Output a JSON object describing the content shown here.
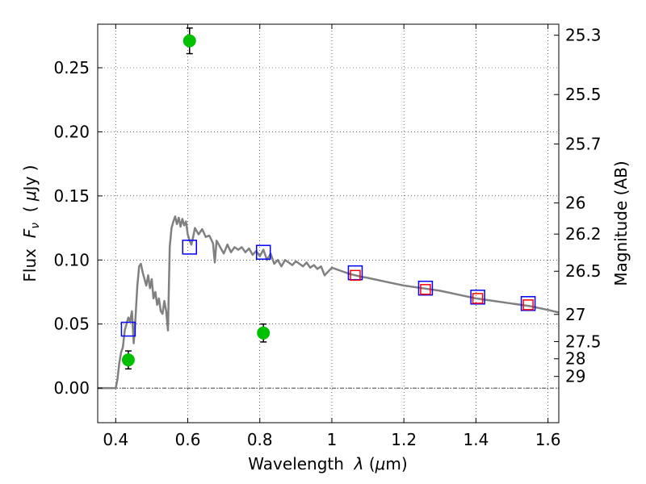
{
  "chart_data": {
    "type": "scatter",
    "xlabel_pre": "Wavelength  ",
    "xlabel_lambda": "λ",
    "xlabel_post": " (",
    "xlabel_mu": "μ",
    "xlabel_unit": "m)",
    "ylabel_pre": "Flux  ",
    "ylabel_F": "F",
    "ylabel_nu": "ν",
    "ylabel_post": "  ( ",
    "ylabel_mu": "μ",
    "ylabel_unit": "Jy )",
    "y2label": "Magnitude (AB)",
    "xlim": [
      0.35,
      1.63
    ],
    "ylim": [
      -0.027,
      0.284
    ],
    "grid": true,
    "xticks": [
      0.4,
      0.6,
      0.8,
      1.0,
      1.2,
      1.4,
      1.6
    ],
    "xtick_labels": [
      "0.4",
      "0.6",
      "0.8",
      "1",
      "1.2",
      "1.4",
      "1.6"
    ],
    "yticks": [
      0.0,
      0.05,
      0.1,
      0.15,
      0.2,
      0.25
    ],
    "ytick_labels": [
      "0.00",
      "0.05",
      "0.10",
      "0.15",
      "0.20",
      "0.25"
    ],
    "mag_ticks": [
      {
        "label": "25.3",
        "flux": 0.2754
      },
      {
        "label": "25.5",
        "flux": 0.2291
      },
      {
        "label": "25.7",
        "flux": 0.1905
      },
      {
        "label": "26",
        "flux": 0.1445
      },
      {
        "label": "26.2",
        "flux": 0.1202
      },
      {
        "label": "26.5",
        "flux": 0.0912
      },
      {
        "label": "27",
        "flux": 0.0575
      },
      {
        "label": "27.5",
        "flux": 0.0363
      },
      {
        "label": "28",
        "flux": 0.0229
      },
      {
        "label": "29",
        "flux": 0.0091
      }
    ],
    "series": [
      {
        "kind": "line",
        "color": "#808080",
        "x": [
          0.35,
          0.4,
          0.405,
          0.41,
          0.415,
          0.42,
          0.425,
          0.43,
          0.435,
          0.44,
          0.445,
          0.45,
          0.455,
          0.46,
          0.465,
          0.47,
          0.475,
          0.48,
          0.485,
          0.49,
          0.495,
          0.5,
          0.505,
          0.51,
          0.515,
          0.52,
          0.525,
          0.53,
          0.535,
          0.54,
          0.545,
          0.55,
          0.555,
          0.56,
          0.565,
          0.57,
          0.575,
          0.58,
          0.585,
          0.59,
          0.595,
          0.6,
          0.605,
          0.61,
          0.615,
          0.62,
          0.63,
          0.64,
          0.65,
          0.66,
          0.67,
          0.675,
          0.68,
          0.69,
          0.7,
          0.71,
          0.72,
          0.73,
          0.74,
          0.75,
          0.76,
          0.77,
          0.78,
          0.79,
          0.8,
          0.81,
          0.82,
          0.83,
          0.84,
          0.85,
          0.86,
          0.87,
          0.88,
          0.89,
          0.9,
          0.91,
          0.92,
          0.93,
          0.94,
          0.95,
          0.96,
          0.97,
          0.98,
          1.0,
          1.02,
          1.05,
          1.08,
          1.1,
          1.15,
          1.2,
          1.25,
          1.3,
          1.35,
          1.4,
          1.45,
          1.5,
          1.55,
          1.6,
          1.63
        ],
        "y": [
          0.0,
          0.0,
          0.007,
          0.02,
          0.028,
          0.032,
          0.045,
          0.05,
          0.055,
          0.052,
          0.06,
          0.035,
          0.055,
          0.08,
          0.095,
          0.097,
          0.09,
          0.085,
          0.08,
          0.088,
          0.078,
          0.085,
          0.07,
          0.075,
          0.065,
          0.07,
          0.06,
          0.058,
          0.068,
          0.06,
          0.045,
          0.11,
          0.125,
          0.13,
          0.134,
          0.128,
          0.133,
          0.126,
          0.132,
          0.127,
          0.13,
          0.12,
          0.115,
          0.112,
          0.118,
          0.125,
          0.12,
          0.124,
          0.118,
          0.119,
          0.113,
          0.098,
          0.115,
          0.11,
          0.105,
          0.112,
          0.106,
          0.11,
          0.108,
          0.11,
          0.106,
          0.109,
          0.104,
          0.107,
          0.103,
          0.108,
          0.1,
          0.105,
          0.097,
          0.1,
          0.095,
          0.1,
          0.098,
          0.096,
          0.099,
          0.097,
          0.095,
          0.098,
          0.094,
          0.096,
          0.093,
          0.095,
          0.088,
          0.094,
          0.092,
          0.089,
          0.087,
          0.086,
          0.083,
          0.08,
          0.078,
          0.076,
          0.073,
          0.07,
          0.068,
          0.066,
          0.064,
          0.061,
          0.059
        ]
      },
      {
        "kind": "open-square",
        "color": "#0000ff",
        "x": [
          0.435,
          0.605,
          0.81,
          1.065,
          1.26,
          1.405,
          1.545
        ],
        "y": [
          0.046,
          0.11,
          0.106,
          0.09,
          0.078,
          0.071,
          0.066
        ]
      },
      {
        "kind": "open-square",
        "color": "#ff0000",
        "x": [
          1.065,
          1.26,
          1.405,
          1.545
        ],
        "y": [
          0.088,
          0.077,
          0.07,
          0.065
        ]
      },
      {
        "kind": "point-errorbar",
        "color": "#00c000",
        "x": [
          0.435,
          0.605,
          0.81
        ],
        "y": [
          0.022,
          0.271,
          0.043
        ],
        "err": [
          0.007,
          0.01,
          0.007
        ]
      }
    ],
    "hline_y": 0.0
  }
}
